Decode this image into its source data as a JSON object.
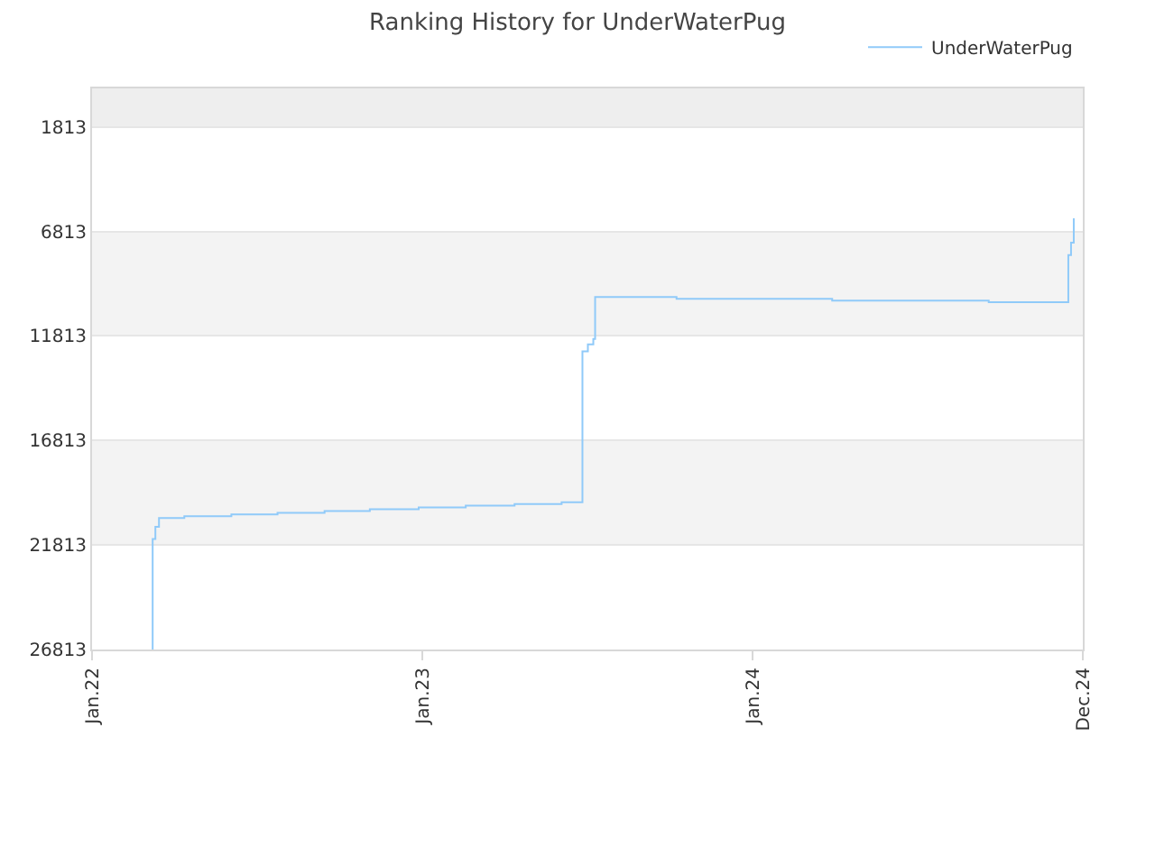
{
  "chart_data": {
    "type": "step",
    "title": "Ranking History for UnderWaterPug",
    "x": [
      "2022-03-08",
      "2022-03-09",
      "2022-03-12",
      "2022-03-16",
      "2022-04-13",
      "2022-06-04",
      "2022-07-25",
      "2022-09-15",
      "2022-11-04",
      "2022-12-28",
      "2023-02-18",
      "2023-04-13",
      "2023-06-04",
      "2023-06-27",
      "2023-07-03",
      "2023-07-09",
      "2023-07-11",
      "2023-10-09",
      "2024-03-29",
      "2024-09-18",
      "2024-12-15",
      "2024-12-18",
      "2024-12-21"
    ],
    "series": [
      {
        "name": "UnderWaterPug",
        "color": "#90caf9",
        "values": [
          26813,
          21530,
          20940,
          20520,
          20440,
          20350,
          20270,
          20190,
          20100,
          20020,
          19930,
          19850,
          19770,
          12550,
          12220,
          11960,
          9950,
          10040,
          10120,
          10200,
          7940,
          7350,
          6180
        ]
      }
    ],
    "xlim": [
      "2022-01-01",
      "2024-12-31"
    ],
    "xticks": [
      {
        "value": "2022-01-01",
        "label": "Jan.22"
      },
      {
        "value": "2023-01-01",
        "label": "Jan.23"
      },
      {
        "value": "2024-01-01",
        "label": "Jan.24"
      },
      {
        "value": "2024-12-31",
        "label": "Dec.24"
      }
    ],
    "ylim": [
      26813,
      -30
    ],
    "yticks": [
      1813,
      6813,
      11813,
      16813,
      21813,
      26813
    ],
    "bands": [
      {
        "axis": "y",
        "from": 1813,
        "to": -30,
        "color": "#eeeeee"
      },
      {
        "axis": "y",
        "from": 6813,
        "to": 11813,
        "color": "#f3f3f3"
      },
      {
        "axis": "y",
        "from": 16813,
        "to": 21813,
        "color": "#f3f3f3"
      }
    ],
    "grid": "y",
    "legend": "top right",
    "line_style": "solid",
    "marker": "none"
  }
}
